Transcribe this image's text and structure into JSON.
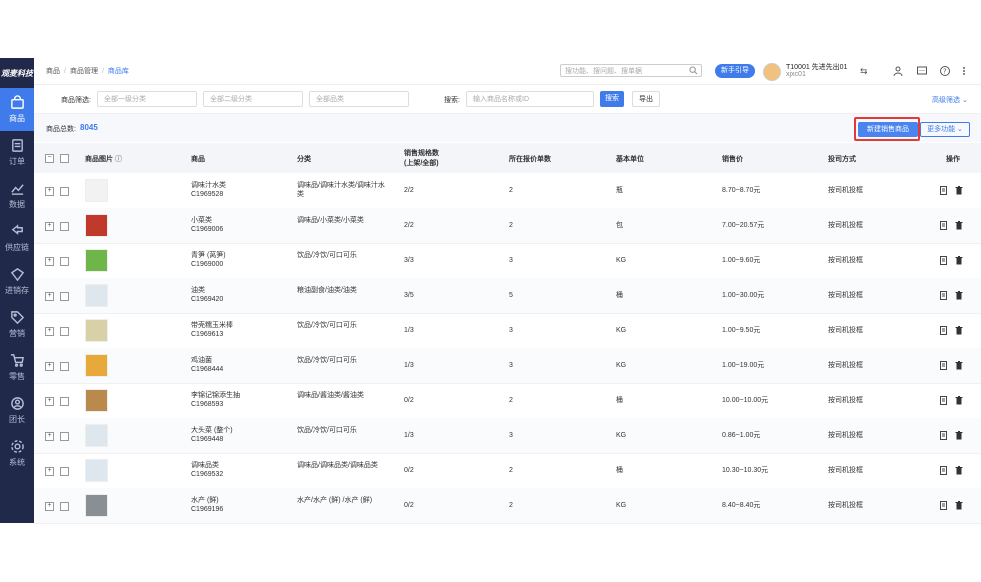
{
  "sidebar": {
    "logo": "观麦科技",
    "items": [
      {
        "label": "商品",
        "icon": "bag-icon"
      },
      {
        "label": "订单",
        "icon": "order-icon"
      },
      {
        "label": "数据",
        "icon": "chart-icon"
      },
      {
        "label": "供应链",
        "icon": "supply-icon"
      },
      {
        "label": "进销存",
        "icon": "inventory-icon"
      },
      {
        "label": "营销",
        "icon": "tag-icon"
      },
      {
        "label": "零售",
        "icon": "cart-icon"
      },
      {
        "label": "团长",
        "icon": "user-icon"
      },
      {
        "label": "系统",
        "icon": "gear-icon"
      }
    ]
  },
  "breadcrumb": [
    "商品",
    "商品管理",
    "商品库"
  ],
  "top": {
    "search_placeholder": "搜功能、搜问题、搜单据",
    "guide": "新手引导",
    "user_name": "T10001 先进先出01",
    "user_sub": "xjxc01",
    "switch": "⇆"
  },
  "filters": {
    "label1": "商品筛选:",
    "cat1": "全部一级分类",
    "cat2": "全部二级分类",
    "cat3": "全部品类",
    "label2": "搜索:",
    "search_placeholder": "输入商品名称或ID",
    "search_btn": "搜索",
    "export_btn": "导出",
    "advanced": "高级筛选"
  },
  "summary": {
    "label": "商品总数:",
    "count": "8045",
    "new_btn": "新建销售商品",
    "more_btn": "更多功能"
  },
  "table": {
    "headers": {
      "image": "商品图片",
      "product": "商品",
      "category": "分类",
      "spec1": "销售规格数",
      "spec2": "(上架/全部)",
      "quote": "所在报价单数",
      "unit": "基本单位",
      "price": "销售价",
      "delivery": "投司方式",
      "ops": "操作"
    },
    "rows": [
      {
        "name": "调味汁水类",
        "id": "C1969528",
        "cat1": "调味品/调味汁水类/调味汁水",
        "cat2": "类",
        "spec": "2/2",
        "quote": "2",
        "unit": "瓶",
        "price": "8.70~8.70元",
        "delivery": "按司机投框",
        "thumb": "#f2f2f2"
      },
      {
        "name": "小菜类",
        "id": "C1969006",
        "cat1": "调味品/小菜类/小菜类",
        "cat2": "",
        "spec": "2/2",
        "quote": "2",
        "unit": "包",
        "price": "7.00~20.57元",
        "delivery": "按司机投框",
        "thumb": "#c0392b"
      },
      {
        "name": "青笋 (莴笋)",
        "id": "C1969000",
        "cat1": "饮品/冷饮/可口可乐",
        "cat2": "",
        "spec": "3/3",
        "quote": "3",
        "unit": "KG",
        "price": "1.00~9.60元",
        "delivery": "按司机投框",
        "thumb": "#6fb64a"
      },
      {
        "name": "油类",
        "id": "C1969420",
        "cat1": "粮油副食/油类/油类",
        "cat2": "",
        "spec": "3/5",
        "quote": "5",
        "unit": "桶",
        "price": "1.00~30.00元",
        "delivery": "按司机投框",
        "thumb": "#dfe7ee"
      },
      {
        "name": "带壳糯玉米棒",
        "id": "C1969613",
        "cat1": "饮品/冷饮/可口可乐",
        "cat2": "",
        "spec": "1/3",
        "quote": "3",
        "unit": "KG",
        "price": "1.00~9.50元",
        "delivery": "按司机投框",
        "thumb": "#d8d1a8"
      },
      {
        "name": "鸡油菌",
        "id": "C1968444",
        "cat1": "饮品/冷饮/可口可乐",
        "cat2": "",
        "spec": "1/3",
        "quote": "3",
        "unit": "KG",
        "price": "1.00~19.00元",
        "delivery": "按司机投框",
        "thumb": "#e6a93a"
      },
      {
        "name": "李锦记锦添生抽",
        "id": "C1968593",
        "cat1": "调味品/酱油类/酱油类",
        "cat2": "",
        "spec": "0/2",
        "quote": "2",
        "unit": "桶",
        "price": "10.00~10.00元",
        "delivery": "按司机投框",
        "thumb": "#b98a4c"
      },
      {
        "name": "大头菜 (整个)",
        "id": "C1969448",
        "cat1": "饮品/冷饮/可口可乐",
        "cat2": "",
        "spec": "1/3",
        "quote": "3",
        "unit": "KG",
        "price": "0.86~1.00元",
        "delivery": "按司机投框",
        "thumb": "#dfe7ee"
      },
      {
        "name": "调味品类",
        "id": "C1969532",
        "cat1": "调味品/调味品类/调味品类",
        "cat2": "",
        "spec": "0/2",
        "quote": "2",
        "unit": "桶",
        "price": "10.30~10.30元",
        "delivery": "按司机投框",
        "thumb": "#dfe7ee"
      },
      {
        "name": "水产 (鲜)",
        "id": "C1969196",
        "cat1": "水产/水产 (鲜) /水产 (鲜)",
        "cat2": "",
        "spec": "0/2",
        "quote": "2",
        "unit": "KG",
        "price": "8.40~8.40元",
        "delivery": "按司机投框",
        "thumb": "#8a8f96"
      }
    ]
  },
  "colors": {
    "primary": "#3f7bea",
    "sidebar": "#20294a",
    "highlight": "#e53935"
  }
}
